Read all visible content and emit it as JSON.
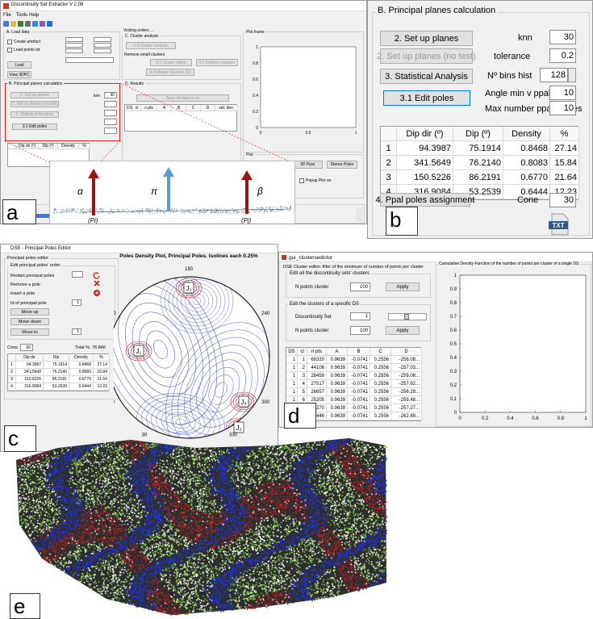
{
  "panel_a": {
    "window_title": "Discontinuity Set Extractor V 2.08",
    "menu": [
      "File",
      "Tools",
      "Help"
    ],
    "load_data": {
      "title": "A. Load data",
      "create_artefact": "Create artefact",
      "load_points": "Load points txt",
      "load": "Load",
      "view": "View 3DPC"
    },
    "visiting_orders": "Visiting orders ...",
    "cluster": {
      "title": "C. Cluster analysis",
      "run": "3.4 Cluster analysis",
      "remove": "Remove small clusters",
      "editor": "5.1 Cluster editor",
      "restore": "5.2 Restore clusters",
      "merge": "5.8 Merge Clusters (D)"
    },
    "principal": {
      "title": "B. Principal planes calculation",
      "setup": "2. Set up planes",
      "setup_nt": "2. Set up planes (no test)",
      "stat": "3. Statistical Analysis",
      "edit": "3.1 Edit poles",
      "knn_label": "knn",
      "knn": "30",
      "table_headers": [
        "Dip dir (º)",
        "Dip (º)",
        "Density",
        "%"
      ]
    },
    "results": {
      "title": "D. Results",
      "save": "Save all data to txt",
      "headers": [
        "DS",
        "cl",
        "n pts",
        "A",
        "B",
        "C",
        "D",
        "std. dev."
      ]
    },
    "plot_frame": "Plot frame",
    "plot_yticks": [
      0,
      0.2,
      0.4,
      0.6,
      0.8,
      1
    ],
    "plot_xticks": [
      0,
      0.5,
      1
    ],
    "plot_group": {
      "title": "Plot",
      "buttons": [
        "3D PC",
        "3D Ppal",
        "Stereo Poles",
        "Poles Density"
      ],
      "popup": "Popup Plot on"
    },
    "actions_log": "Actions log",
    "inset": {
      "alpha": "α",
      "pi": "π",
      "beta": "β",
      "pi_label": "(Pi)",
      "pj_label": "(Pj)"
    },
    "label": "a"
  },
  "panel_b": {
    "title": "B. Principal planes calculation",
    "buttons": {
      "setup": "2. Set up planes",
      "setup_nt": "2. Set up planes (no test)",
      "stat": "3. Statistical Analysis",
      "edit": "3.1 Edit poles",
      "assign": "4. Ppal poles assignment"
    },
    "params": [
      {
        "label": "knn",
        "value": "30"
      },
      {
        "label": "tolerance",
        "value": "0.2"
      },
      {
        "label": "Nº bins hist",
        "value": "128"
      },
      {
        "label": "Angle min v ppal",
        "value": "10"
      },
      {
        "label": "Max number ppal planes",
        "value": "10"
      }
    ],
    "cone": {
      "label": "Cone",
      "value": "30"
    },
    "table": {
      "headers": [
        "Dip dir (º)",
        "Dip (º)",
        "Density",
        "%"
      ],
      "rows": [
        [
          "1",
          "94.3987",
          "75.1914",
          "0.8468",
          "27.14"
        ],
        [
          "2",
          "341.5649",
          "76.2140",
          "0.8083",
          "15.84"
        ],
        [
          "3",
          "150.5226",
          "86.2191",
          "0.6770",
          "21.64"
        ],
        [
          "4",
          "316.9084",
          "53.2539",
          "0.6444",
          "12.23"
        ]
      ]
    },
    "icon": "TXT",
    "label": "b"
  },
  "panel_c": {
    "window_title": "DSE - Principal Poles Editor",
    "group": "Principal poles editor",
    "subgroup": "Edit principal poles' order",
    "restart": "Restart principal poles",
    "remove": "Remove a pole",
    "insert": "Insert a pole",
    "id_label": "Id of principal pole",
    "id_value": "1",
    "move_up": "Move up",
    "move_down": "Move down",
    "move_to": "Move to",
    "move_to_value": "1",
    "cone_label": "Cone",
    "cone_value": "30",
    "total": "Total %: 76.846",
    "table": {
      "headers": [
        "Dip dir",
        "Dip",
        "Density",
        "%"
      ],
      "rows": [
        [
          "1",
          "94.3987",
          "75.1914",
          "0.8468",
          "27.14"
        ],
        [
          "2",
          "341.5649",
          "76.2140",
          "0.8083",
          "15.84"
        ],
        [
          "3",
          "150.5226",
          "86.2191",
          "0.6770",
          "21.64"
        ],
        [
          "4",
          "316.9084",
          "53.2539",
          "0.6444",
          "12.23"
        ]
      ]
    },
    "plot_title": "Poles Density Plot, Principal Poles. Isolines each 0.25%",
    "angles": [
      180,
      120,
      240,
      90,
      60,
      300,
      30,
      330
    ],
    "joints": [
      "J₃",
      "J₁",
      "J₄",
      "J₂"
    ],
    "label": "c"
  },
  "panel_d": {
    "window_title": "gui_clustersedictor",
    "heading": "DSE Cluster editor: filter of the minimum of number of points per cluster",
    "group_all": "Edit all the discontinuity sets' clusters",
    "group_one": "Edit the clusters of a specific DS",
    "n_points_label": "N points cluster",
    "n_points_all": "100",
    "ds_label": "Discontinuity Set",
    "ds_value": "1",
    "n_points_one": "100",
    "apply": "Apply",
    "table": {
      "headers": [
        "DS",
        "cl",
        "n pts",
        "A",
        "B",
        "C",
        "D"
      ],
      "rows": [
        [
          "1",
          "1",
          "69320",
          "0.9639",
          "-0.0741",
          "0.2556",
          "-256.08..."
        ],
        [
          "1",
          "2",
          "44106",
          "0.9639",
          "-0.0741",
          "0.2556",
          "-257.03..."
        ],
        [
          "1",
          "3",
          "28459",
          "0.9639",
          "-0.0741",
          "0.2556",
          "-259.08..."
        ],
        [
          "1",
          "4",
          "27517",
          "0.9639",
          "-0.0741",
          "0.2556",
          "-257.92..."
        ],
        [
          "1",
          "5",
          "26657",
          "0.9639",
          "-0.0741",
          "0.2556",
          "-256.28..."
        ],
        [
          "1",
          "6",
          "25205",
          "0.9639",
          "-0.0741",
          "0.2556",
          "-259.48..."
        ],
        [
          "1",
          "7",
          "23270",
          "0.9639",
          "-0.0741",
          "0.2556",
          "-257.27..."
        ],
        [
          "1",
          "8",
          "21446",
          "0.9639",
          "-0.0741",
          "0.2556",
          "-262.89..."
        ]
      ]
    },
    "plot_title": "Cumulative Density Function of the number of points per cluster of a single DS",
    "yticks": [
      0,
      0.1,
      0.2,
      0.3,
      0.4,
      0.5,
      0.6,
      0.7,
      0.8,
      0.9,
      1
    ],
    "xticks": [
      0,
      0.2,
      0.4,
      0.6,
      0.8,
      1
    ],
    "label": "d"
  },
  "panel_e": {
    "label": "e"
  }
}
